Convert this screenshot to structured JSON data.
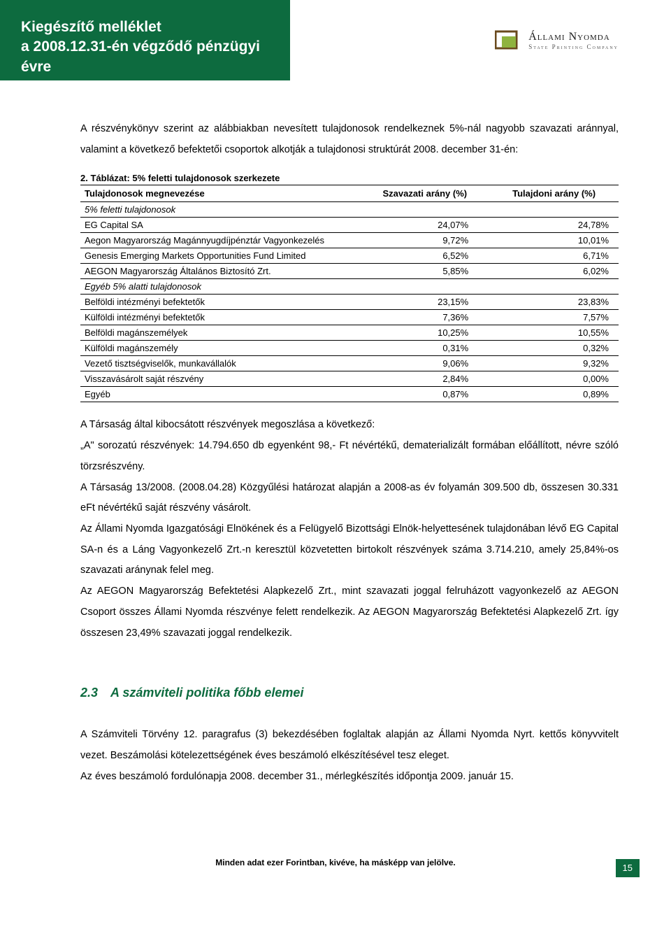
{
  "header": {
    "title_line1": "Kiegészítő melléklet",
    "title_line2": "a 2008.12.31-én végződő pénzügyi évre",
    "logo_main": "Állami Nyomda",
    "logo_sub": "State Printing Company",
    "logo_colors": {
      "outer": "#6a4a1e",
      "inner": "#8fb33f"
    }
  },
  "intro": "A részvénykönyv szerint az alábbiakban nevesített tulajdonosok rendelkeznek 5%-nál nagyobb szavazati aránnyal, valamint a következő befektetői csoportok alkotják a tulajdonosi struktúrát 2008. december 31-én:",
  "table": {
    "caption": "2. Táblázat: 5% feletti tulajdonosok szerkezete",
    "col_name": "Tulajdonosok megnevezése",
    "col_vote": "Szavazati arány (%)",
    "col_own": "Tulajdoni arány (%)",
    "section_above": "5% feletti tulajdonosok",
    "section_below": "Egyéb 5% alatti tulajdonosok",
    "rows_above": [
      {
        "name": "EG Capital SA",
        "vote": "24,07%",
        "own": "24,78%"
      },
      {
        "name": "Aegon Magyarország Magánnyugdíjpénztár Vagyonkezelés",
        "vote": "9,72%",
        "own": "10,01%"
      },
      {
        "name": "Genesis Emerging Markets Opportunities Fund Limited",
        "vote": "6,52%",
        "own": "6,71%"
      },
      {
        "name": "AEGON Magyarország Általános Biztosító Zrt.",
        "vote": "5,85%",
        "own": "6,02%"
      }
    ],
    "rows_below": [
      {
        "name": "Belföldi intézményi befektetők",
        "vote": "23,15%",
        "own": "23,83%"
      },
      {
        "name": "Külföldi intézményi befektetők",
        "vote": "7,36%",
        "own": "7,57%"
      },
      {
        "name": "Belföldi magánszemélyek",
        "vote": "10,25%",
        "own": "10,55%"
      },
      {
        "name": "Külföldi magánszemély",
        "vote": "0,31%",
        "own": "0,32%"
      },
      {
        "name": "Vezető tisztségviselők, munkavállalók",
        "vote": "9,06%",
        "own": "9,32%"
      },
      {
        "name": "Visszavásárolt saját részvény",
        "vote": "2,84%",
        "own": "0,00%"
      },
      {
        "name": "Egyéb",
        "vote": "0,87%",
        "own": "0,89%"
      }
    ]
  },
  "body": {
    "p1": "A Társaság által kibocsátott részvények megoszlása a következő:",
    "p2": "„A\" sorozatú részvények: 14.794.650 db egyenként 98,- Ft névértékű, dematerializált formában előállított, névre szóló törzsrészvény.",
    "p3": "A Társaság 13/2008. (2008.04.28) Közgyűlési határozat alapján a 2008-as év folyamán 309.500 db, összesen 30.331 eFt névértékű saját részvény vásárolt.",
    "p4": "Az Állami Nyomda Igazgatósági Elnökének és a Felügyelő Bizottsági Elnök-helyettesének tulajdonában lévő EG Capital SA-n és a Láng Vagyonkezelő Zrt.-n keresztül közvetetten birtokolt részvények száma 3.714.210, amely 25,84%-os szavazati aránynak felel meg.",
    "p5": "Az AEGON Magyarország Befektetési Alapkezelő Zrt., mint szavazati joggal felruházott vagyonkezelő az AEGON Csoport összes Állami Nyomda részvénye felett rendelkezik. Az AEGON Magyarország Befektetési Alapkezelő Zrt. így összesen 23,49% szavazati joggal rendelkezik."
  },
  "section23": {
    "num": "2.3",
    "title": "A számviteli politika főbb elemei",
    "p1": "A Számviteli Törvény 12. paragrafus (3) bekezdésében foglaltak alapján az Állami Nyomda Nyrt. kettős könyvvitelt vezet. Beszámolási kötelezettségének éves beszámoló elkészítésével tesz eleget.",
    "p2": "Az éves beszámoló fordulónapja 2008. december 31., mérlegkészítés időpontja 2009. január 15."
  },
  "footer": {
    "note": "Minden adat ezer Forintban, kivéve, ha másképp van jelölve.",
    "page": "15"
  },
  "colors": {
    "brand_green": "#0d6b3f",
    "text": "#000000",
    "bg": "#ffffff"
  }
}
